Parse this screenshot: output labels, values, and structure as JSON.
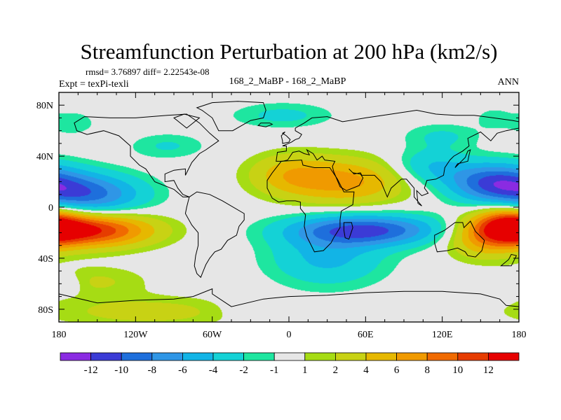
{
  "chart_data": {
    "type": "heatmap",
    "title": "Streamfunction Perturbation at 200 hPa (km2/s)",
    "stats_line": "rmsd= 3.76897 diff= 2.22543e-08",
    "left_label": "Expt = texPi-texli",
    "center_label": "168_2_MaBP - 168_2_MaBP",
    "right_label": "ANN",
    "xlim": [
      -180,
      180
    ],
    "ylim": [
      -90,
      90
    ],
    "x_ticks": [
      {
        "value": -180,
        "label": "180"
      },
      {
        "value": -120,
        "label": "120W"
      },
      {
        "value": -60,
        "label": "60W"
      },
      {
        "value": 0,
        "label": "0"
      },
      {
        "value": 60,
        "label": "60E"
      },
      {
        "value": 120,
        "label": "120E"
      },
      {
        "value": 180,
        "label": "180"
      }
    ],
    "y_ticks": [
      {
        "value": 80,
        "label": "80N"
      },
      {
        "value": 40,
        "label": "40N"
      },
      {
        "value": 0,
        "label": "0"
      },
      {
        "value": -40,
        "label": "40S"
      },
      {
        "value": -80,
        "label": "80S"
      }
    ],
    "colorbar": {
      "colors": [
        "#8a2be2",
        "#3b3bd6",
        "#1e6fdc",
        "#2f96e6",
        "#12b4e6",
        "#14d2d6",
        "#1ee6a0",
        "#e6e6e6",
        "#a6dc14",
        "#c8d214",
        "#e6b800",
        "#f09a00",
        "#f06a00",
        "#e63c00",
        "#e60000"
      ],
      "levels": [
        -12,
        -10,
        -8,
        -6,
        -4,
        -2,
        -1,
        1,
        2,
        4,
        6,
        8,
        10,
        12
      ]
    },
    "anomalies": [
      {
        "lon": -155,
        "lat": -18,
        "amp": 12,
        "rx": 48,
        "ry": 13
      },
      {
        "lon": 172,
        "lat": -14,
        "amp": 10.5,
        "rx": 26,
        "ry": 15
      },
      {
        "lon": 45,
        "lat": 20,
        "amp": 6.5,
        "rx": 48,
        "ry": 18
      },
      {
        "lon": 0,
        "lat": 26,
        "amp": 4,
        "rx": 32,
        "ry": 16
      },
      {
        "lon": 150,
        "lat": -25,
        "amp": 4.5,
        "rx": 28,
        "ry": 16
      },
      {
        "lon": -110,
        "lat": -82,
        "amp": 2.8,
        "rx": 80,
        "ry": 12
      },
      {
        "lon": -150,
        "lat": -58,
        "amp": 2.2,
        "rx": 40,
        "ry": 12
      },
      {
        "lon": -5,
        "lat": 72,
        "amp": -2.5,
        "rx": 40,
        "ry": 10
      },
      {
        "lon": 60,
        "lat": -18,
        "amp": -10.5,
        "rx": 58,
        "ry": 12
      },
      {
        "lon": 30,
        "lat": -40,
        "amp": -4.5,
        "rx": 45,
        "ry": 22
      },
      {
        "lon": 160,
        "lat": 20,
        "amp": -9,
        "rx": 36,
        "ry": 15
      },
      {
        "lon": 110,
        "lat": 32,
        "amp": -4,
        "rx": 30,
        "ry": 14
      },
      {
        "lon": -160,
        "lat": 10,
        "amp": -9,
        "rx": 45,
        "ry": 16
      },
      {
        "lon": -95,
        "lat": 48,
        "amp": -2.2,
        "rx": 30,
        "ry": 10
      },
      {
        "lon": -170,
        "lat": 66,
        "amp": -1.8,
        "rx": 20,
        "ry": 10
      },
      {
        "lon": 120,
        "lat": 56,
        "amp": -2.2,
        "rx": 30,
        "ry": 10
      },
      {
        "lon": 160,
        "lat": 70,
        "amp": -1.6,
        "rx": 14,
        "ry": 8
      },
      {
        "lon": -25,
        "lat": -80,
        "amp": -1.6,
        "rx": 30,
        "ry": 10
      },
      {
        "lon": -170,
        "lat": -60,
        "amp": -1.4,
        "rx": 10,
        "ry": 8
      }
    ],
    "continents": [
      [
        [
          -168,
          66
        ],
        [
          -160,
          71
        ],
        [
          -140,
          70
        ],
        [
          -120,
          70
        ],
        [
          -95,
          72
        ],
        [
          -80,
          73
        ],
        [
          -70,
          66
        ],
        [
          -62,
          58
        ],
        [
          -55,
          52
        ],
        [
          -65,
          45
        ],
        [
          -70,
          42
        ],
        [
          -76,
          35
        ],
        [
          -81,
          25
        ],
        [
          -81,
          30
        ],
        [
          -90,
          29
        ],
        [
          -97,
          26
        ],
        [
          -97,
          20
        ],
        [
          -90,
          21
        ],
        [
          -87,
          15
        ],
        [
          -83,
          10
        ],
        [
          -78,
          8
        ],
        [
          -83,
          8
        ],
        [
          -90,
          14
        ],
        [
          -105,
          20
        ],
        [
          -112,
          30
        ],
        [
          -117,
          33
        ],
        [
          -124,
          40
        ],
        [
          -124,
          48
        ],
        [
          -133,
          56
        ],
        [
          -145,
          60
        ],
        [
          -158,
          57
        ],
        [
          -166,
          60
        ],
        [
          -168,
          66
        ]
      ],
      [
        [
          -78,
          8
        ],
        [
          -72,
          12
        ],
        [
          -62,
          10
        ],
        [
          -52,
          5
        ],
        [
          -35,
          -5
        ],
        [
          -35,
          -10
        ],
        [
          -39,
          -15
        ],
        [
          -41,
          -22
        ],
        [
          -48,
          -26
        ],
        [
          -53,
          -33
        ],
        [
          -58,
          -35
        ],
        [
          -62,
          -40
        ],
        [
          -65,
          -45
        ],
        [
          -67,
          -50
        ],
        [
          -69,
          -55
        ],
        [
          -72,
          -52
        ],
        [
          -74,
          -46
        ],
        [
          -73,
          -38
        ],
        [
          -71,
          -30
        ],
        [
          -71,
          -20
        ],
        [
          -76,
          -14
        ],
        [
          -81,
          -5
        ],
        [
          -80,
          0
        ],
        [
          -78,
          8
        ]
      ],
      [
        [
          -17,
          15
        ],
        [
          -17,
          21
        ],
        [
          -13,
          27
        ],
        [
          -6,
          36
        ],
        [
          10,
          37
        ],
        [
          11,
          33
        ],
        [
          20,
          31
        ],
        [
          32,
          31
        ],
        [
          34,
          28
        ],
        [
          38,
          22
        ],
        [
          43,
          12
        ],
        [
          51,
          12
        ],
        [
          50,
          2
        ],
        [
          41,
          -3
        ],
        [
          40,
          -10
        ],
        [
          40,
          -16
        ],
        [
          35,
          -24
        ],
        [
          33,
          -28
        ],
        [
          27,
          -34
        ],
        [
          20,
          -35
        ],
        [
          18,
          -31
        ],
        [
          14,
          -23
        ],
        [
          12,
          -15
        ],
        [
          13,
          -6
        ],
        [
          9,
          -1
        ],
        [
          9,
          4
        ],
        [
          5,
          5
        ],
        [
          -2,
          5
        ],
        [
          -8,
          4
        ],
        [
          -13,
          7
        ],
        [
          -17,
          15
        ]
      ],
      [
        [
          -10,
          36
        ],
        [
          -9,
          43
        ],
        [
          -2,
          44
        ],
        [
          -2,
          48
        ],
        [
          -5,
          48
        ],
        [
          2,
          51
        ],
        [
          5,
          53
        ],
        [
          8,
          54
        ],
        [
          10,
          57
        ],
        [
          5,
          60
        ],
        [
          5,
          62
        ],
        [
          12,
          66
        ],
        [
          18,
          70
        ],
        [
          30,
          71
        ],
        [
          42,
          67
        ],
        [
          60,
          70
        ],
        [
          80,
          73
        ],
        [
          100,
          76
        ],
        [
          115,
          73
        ],
        [
          130,
          72
        ],
        [
          145,
          72
        ],
        [
          160,
          70
        ],
        [
          175,
          68
        ],
        [
          180,
          67
        ],
        [
          180,
          62
        ],
        [
          170,
          60
        ],
        [
          163,
          58
        ],
        [
          158,
          52
        ],
        [
          150,
          59
        ],
        [
          140,
          54
        ],
        [
          141,
          48
        ],
        [
          136,
          44
        ],
        [
          129,
          40
        ],
        [
          126,
          37
        ],
        [
          122,
          31
        ],
        [
          121,
          25
        ],
        [
          115,
          22
        ],
        [
          108,
          21
        ],
        [
          106,
          15
        ],
        [
          109,
          11
        ],
        [
          104,
          9
        ],
        [
          100,
          13
        ],
        [
          101,
          3
        ],
        [
          104,
          1
        ],
        [
          98,
          8
        ],
        [
          98,
          15
        ],
        [
          92,
          22
        ],
        [
          88,
          22
        ],
        [
          80,
          15
        ],
        [
          77,
          8
        ],
        [
          72,
          20
        ],
        [
          67,
          25
        ],
        [
          57,
          25
        ],
        [
          56,
          27
        ],
        [
          51,
          26
        ],
        [
          47,
          30
        ],
        [
          50,
          27
        ],
        [
          56,
          26
        ],
        [
          58,
          23
        ],
        [
          55,
          17
        ],
        [
          45,
          13
        ],
        [
          40,
          16
        ],
        [
          35,
          28
        ],
        [
          34,
          32
        ],
        [
          36,
          36
        ],
        [
          28,
          37
        ],
        [
          26,
          40
        ],
        [
          22,
          37
        ],
        [
          19,
          42
        ],
        [
          14,
          45
        ],
        [
          16,
          41
        ],
        [
          12,
          42
        ],
        [
          8,
          44
        ],
        [
          3,
          43
        ],
        [
          -1,
          37
        ],
        [
          -5,
          36
        ],
        [
          -10,
          36
        ]
      ],
      [
        [
          114,
          -22
        ],
        [
          122,
          -18
        ],
        [
          130,
          -12
        ],
        [
          136,
          -12
        ],
        [
          137,
          -16
        ],
        [
          142,
          -11
        ],
        [
          146,
          -19
        ],
        [
          153,
          -26
        ],
        [
          151,
          -34
        ],
        [
          146,
          -39
        ],
        [
          140,
          -38
        ],
        [
          138,
          -35
        ],
        [
          132,
          -32
        ],
        [
          124,
          -34
        ],
        [
          116,
          -35
        ],
        [
          114,
          -28
        ],
        [
          114,
          -22
        ]
      ],
      [
        [
          -180,
          -68
        ],
        [
          -150,
          -75
        ],
        [
          -120,
          -73
        ],
        [
          -90,
          -72
        ],
        [
          -75,
          -70
        ],
        [
          -60,
          -64
        ],
        [
          -60,
          -68
        ],
        [
          -45,
          -78
        ],
        [
          -20,
          -72
        ],
        [
          0,
          -70
        ],
        [
          30,
          -69
        ],
        [
          60,
          -67
        ],
        [
          90,
          -66
        ],
        [
          120,
          -66
        ],
        [
          150,
          -68
        ],
        [
          165,
          -72
        ],
        [
          170,
          -77
        ],
        [
          180,
          -78
        ],
        [
          180,
          -90
        ],
        [
          -180,
          -90
        ],
        [
          -180,
          -68
        ]
      ],
      [
        [
          -55,
          60
        ],
        [
          -44,
          60
        ],
        [
          -30,
          68
        ],
        [
          -20,
          70
        ],
        [
          -18,
          76
        ],
        [
          -20,
          82
        ],
        [
          -40,
          83
        ],
        [
          -60,
          82
        ],
        [
          -72,
          78
        ],
        [
          -68,
          76
        ],
        [
          -60,
          70
        ],
        [
          -55,
          60
        ]
      ],
      [
        [
          -24,
          64
        ],
        [
          -22,
          66
        ],
        [
          -15,
          66
        ],
        [
          -13,
          65
        ],
        [
          -18,
          63
        ],
        [
          -24,
          64
        ]
      ],
      [
        [
          -5,
          50
        ],
        [
          0,
          51
        ],
        [
          1,
          53
        ],
        [
          -2,
          56
        ],
        [
          -5,
          58
        ],
        [
          -3,
          59
        ],
        [
          -6,
          56
        ],
        [
          -5,
          52
        ],
        [
          -5,
          50
        ]
      ],
      [
        [
          130,
          31
        ],
        [
          132,
          34
        ],
        [
          136,
          35
        ],
        [
          140,
          36
        ],
        [
          141,
          41
        ],
        [
          142,
          45
        ],
        [
          140,
          44
        ],
        [
          138,
          39
        ],
        [
          133,
          34
        ],
        [
          130,
          31
        ]
      ],
      [
        [
          43,
          -12
        ],
        [
          49,
          -12
        ],
        [
          50,
          -16
        ],
        [
          47,
          -25
        ],
        [
          44,
          -24
        ],
        [
          43,
          -18
        ],
        [
          43,
          -12
        ]
      ],
      [
        [
          -80,
          62
        ],
        [
          -70,
          70
        ],
        [
          -82,
          73
        ],
        [
          -90,
          70
        ],
        [
          -80,
          62
        ]
      ],
      [
        [
          166,
          -46
        ],
        [
          172,
          -41
        ],
        [
          174,
          -37
        ],
        [
          178,
          -38
        ],
        [
          174,
          -46
        ],
        [
          166,
          -46
        ]
      ]
    ]
  }
}
